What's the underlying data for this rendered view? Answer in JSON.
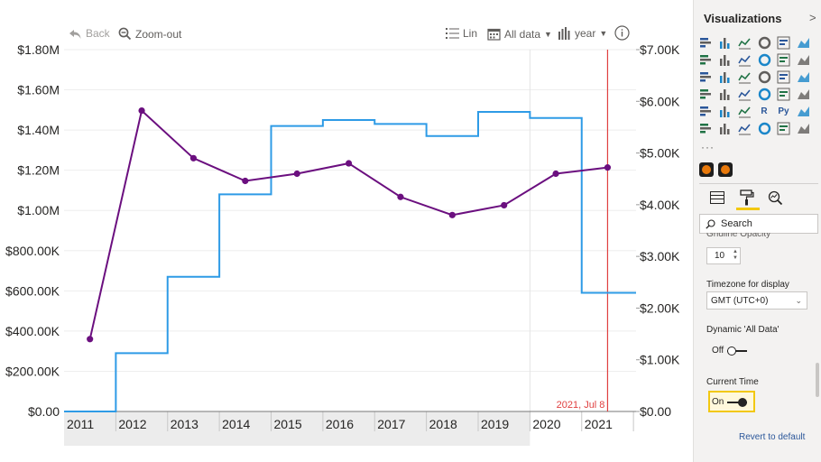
{
  "toolbar": {
    "back_label": "Back",
    "zoom_out_label": "Zoom-out",
    "scale_label": "Lin",
    "range_label": "All data",
    "period_label": "year",
    "info_icon": "info-icon"
  },
  "chart_data": {
    "type": "line",
    "x_ticks": [
      "2011",
      "2012",
      "2013",
      "2014",
      "2015",
      "2016",
      "2017",
      "2018",
      "2019",
      "2020",
      "2021"
    ],
    "y_left_ticks": [
      "$0.00",
      "$200.00K",
      "$400.00K",
      "$600.00K",
      "$800.00K",
      "$1.00M",
      "$1.20M",
      "$1.40M",
      "$1.60M",
      "$1.80M"
    ],
    "y_left_range": [
      0,
      1800000
    ],
    "y_right_ticks": [
      "$0.00",
      "$1.00K",
      "$2.00K",
      "$3.00K",
      "$4.00K",
      "$5.00K",
      "$6.00K",
      "$7.00K"
    ],
    "y_right_range": [
      0,
      7000
    ],
    "grid": true,
    "legend": "none",
    "series": [
      {
        "type": "step",
        "axis": "left",
        "color": "#2e9be6",
        "x": [
          2010.7,
          2011.7,
          2012.7,
          2013.7,
          2014.7,
          2015.7,
          2016.7,
          2017.7,
          2018.7,
          2019.7,
          2020.7,
          2021.7
        ],
        "values": [
          0,
          290000,
          670000,
          1080000,
          1420000,
          1450000,
          1430000,
          1370000,
          1490000,
          1460000,
          590000,
          590000
        ]
      },
      {
        "type": "line",
        "axis": "right",
        "color": "#6b0f7f",
        "x": [
          2011.2,
          2012.2,
          2013.2,
          2014.2,
          2015.2,
          2016.2,
          2017.2,
          2018.2,
          2019.2,
          2020.2,
          2021.2
        ],
        "values": [
          1400,
          5820,
          4900,
          4460,
          4600,
          4800,
          4150,
          3800,
          3990,
          4600,
          4720
        ]
      }
    ],
    "marker": {
      "x": 2021.2,
      "label": "2021, Jul 8",
      "color": "#e04040"
    },
    "shaded_range": [
      2010.7,
      2019.7
    ]
  },
  "pane": {
    "title": "Visualizations",
    "search_placeholder": "Search",
    "cut_label": "Gridline Opacity",
    "gridline_opacity": "10",
    "timezone_label": "Timezone for display",
    "timezone_value": "GMT (UTC+0)",
    "dynamic_label": "Dynamic 'All Data'",
    "dynamic_value": "Off",
    "current_time_label": "Current Time",
    "current_time_value": "On",
    "revert_label": "Revert to default",
    "visual_icons": [
      "stacked-bar-icon",
      "stacked-column-icon",
      "clustered-bar-icon",
      "clustered-column-icon",
      "100-bar-icon",
      "100-column-icon",
      "line-chart-icon",
      "area-chart-icon",
      "stacked-area-icon",
      "line-column-icon",
      "line-clustered-icon",
      "ribbon-icon",
      "waterfall-icon",
      "funnel-icon",
      "scatter-icon",
      "pie-icon",
      "donut-icon",
      "treemap-icon",
      "map-icon",
      "filled-map-icon",
      "gauge-icon",
      "card-icon",
      "multi-row-card-icon",
      "kpi-icon",
      "slicer-icon",
      "table-icon",
      "matrix-icon",
      "r-visual-icon",
      "python-visual-icon",
      "key-influencers-icon",
      "decomposition-tree-icon",
      "qa-icon",
      "narrative-icon",
      "paginated-icon",
      "arcgis-icon",
      "power-apps-icon"
    ]
  }
}
